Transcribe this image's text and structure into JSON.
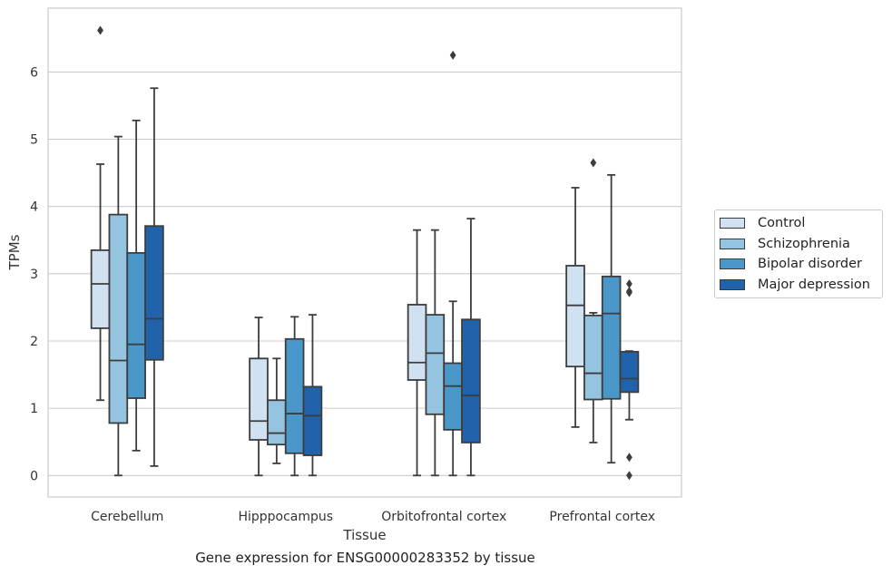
{
  "chart_data": {
    "type": "box",
    "categories": [
      "Cerebellum",
      "Hipppocampus",
      "Orbitofrontal cortex",
      "Prefrontal cortex"
    ],
    "xlabel": "Tissue",
    "ylabel": "TPMs",
    "ylim": [
      -0.32,
      6.95
    ],
    "yticks": [
      0,
      1,
      2,
      3,
      4,
      5,
      6
    ],
    "grid": true,
    "legend_position": "right",
    "caption": "Gene expression for ENSG00000283352 by tissue",
    "series": [
      {
        "name": "Control",
        "color": "#d0e1f2",
        "boxes": [
          {
            "min": 1.12,
            "q1": 2.19,
            "median": 2.85,
            "q3": 3.35,
            "max": 4.63,
            "outliers": [
              6.62
            ]
          },
          {
            "min": 0.0,
            "q1": 0.53,
            "median": 0.81,
            "q3": 1.74,
            "max": 2.35,
            "outliers": []
          },
          {
            "min": 0.0,
            "q1": 1.42,
            "median": 1.68,
            "q3": 2.54,
            "max": 3.65,
            "outliers": []
          },
          {
            "min": 0.72,
            "q1": 1.62,
            "median": 2.53,
            "q3": 3.12,
            "max": 4.28,
            "outliers": []
          }
        ]
      },
      {
        "name": "Schizophrenia",
        "color": "#94c4df",
        "boxes": [
          {
            "min": 0.0,
            "q1": 0.78,
            "median": 1.71,
            "q3": 3.88,
            "max": 5.04,
            "outliers": []
          },
          {
            "min": 0.18,
            "q1": 0.46,
            "median": 0.63,
            "q3": 1.12,
            "max": 1.74,
            "outliers": []
          },
          {
            "min": 0.0,
            "q1": 0.91,
            "median": 1.82,
            "q3": 2.39,
            "max": 3.65,
            "outliers": []
          },
          {
            "min": 0.49,
            "q1": 1.13,
            "median": 1.52,
            "q3": 2.38,
            "max": 2.42,
            "outliers": [
              4.65
            ]
          }
        ]
      },
      {
        "name": "Bipolar disorder",
        "color": "#4a98c9",
        "boxes": [
          {
            "min": 0.37,
            "q1": 1.15,
            "median": 1.95,
            "q3": 3.31,
            "max": 5.28,
            "outliers": []
          },
          {
            "min": 0.0,
            "q1": 0.33,
            "median": 0.92,
            "q3": 2.03,
            "max": 2.36,
            "outliers": []
          },
          {
            "min": 0.0,
            "q1": 0.68,
            "median": 1.33,
            "q3": 1.67,
            "max": 2.59,
            "outliers": [
              6.25
            ]
          },
          {
            "min": 0.19,
            "q1": 1.14,
            "median": 2.41,
            "q3": 2.96,
            "max": 4.47,
            "outliers": []
          }
        ]
      },
      {
        "name": "Major depression",
        "color": "#2163aa",
        "boxes": [
          {
            "min": 0.14,
            "q1": 1.72,
            "median": 2.33,
            "q3": 3.71,
            "max": 5.76,
            "outliers": []
          },
          {
            "min": 0.0,
            "q1": 0.3,
            "median": 0.89,
            "q3": 1.32,
            "max": 2.39,
            "outliers": []
          },
          {
            "min": 0.0,
            "q1": 0.49,
            "median": 1.19,
            "q3": 2.32,
            "max": 3.82,
            "outliers": []
          },
          {
            "min": 0.83,
            "q1": 1.24,
            "median": 1.44,
            "q3": 1.84,
            "max": 1.85,
            "outliers": [
              2.85,
              2.74,
              2.72,
              0.27,
              0.0
            ]
          }
        ]
      }
    ]
  }
}
